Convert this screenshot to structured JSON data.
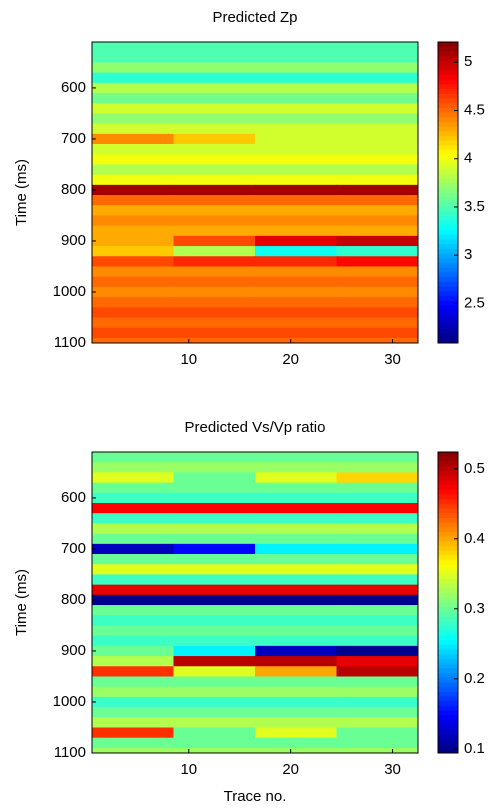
{
  "chart_data": [
    {
      "type": "heatmap",
      "title": "Predicted Zp",
      "y_label": "Time (ms)",
      "colormap": "jet",
      "x": [
        4.5,
        12.5,
        20.5,
        28.5
      ],
      "y": [
        520,
        540,
        560,
        580,
        600,
        620,
        640,
        660,
        680,
        700,
        720,
        740,
        760,
        780,
        800,
        820,
        840,
        860,
        880,
        900,
        920,
        940,
        960,
        980,
        1000,
        1020,
        1040,
        1060,
        1080,
        1100
      ],
      "values": [
        [
          3.5,
          3.5,
          3.5,
          3.5
        ],
        [
          3.5,
          3.5,
          3.5,
          3.5
        ],
        [
          3.7,
          3.7,
          3.7,
          3.7
        ],
        [
          3.4,
          3.4,
          3.4,
          3.4
        ],
        [
          3.8,
          3.8,
          3.8,
          3.8
        ],
        [
          3.6,
          3.6,
          3.6,
          3.6
        ],
        [
          3.9,
          3.9,
          3.9,
          3.9
        ],
        [
          3.7,
          3.7,
          3.7,
          3.7
        ],
        [
          3.9,
          3.9,
          3.9,
          3.9
        ],
        [
          4.4,
          4.2,
          3.9,
          3.9
        ],
        [
          3.9,
          3.9,
          3.9,
          3.9
        ],
        [
          4.0,
          4.0,
          4.0,
          4.0
        ],
        [
          3.8,
          3.8,
          3.8,
          3.8
        ],
        [
          4.0,
          4.0,
          4.0,
          4.0
        ],
        [
          5.1,
          5.1,
          5.1,
          5.1
        ],
        [
          4.5,
          4.5,
          4.5,
          4.5
        ],
        [
          4.3,
          4.3,
          4.3,
          4.3
        ],
        [
          4.4,
          4.4,
          4.4,
          4.4
        ],
        [
          4.3,
          4.3,
          4.3,
          4.3
        ],
        [
          4.3,
          4.6,
          4.9,
          5.0
        ],
        [
          4.2,
          3.8,
          3.3,
          3.4
        ],
        [
          4.6,
          4.7,
          4.7,
          4.8
        ],
        [
          4.4,
          4.4,
          4.4,
          4.4
        ],
        [
          4.5,
          4.5,
          4.5,
          4.5
        ],
        [
          4.4,
          4.4,
          4.4,
          4.4
        ],
        [
          4.5,
          4.5,
          4.5,
          4.5
        ],
        [
          4.6,
          4.6,
          4.6,
          4.6
        ],
        [
          4.5,
          4.5,
          4.5,
          4.5
        ],
        [
          4.6,
          4.6,
          4.6,
          4.6
        ],
        [
          4.5,
          4.5,
          4.5,
          4.5
        ]
      ],
      "xlim": [
        0.5,
        32.5
      ],
      "ylim": [
        510,
        1100
      ],
      "xticks": [
        10,
        20,
        30
      ],
      "yticks": [
        600,
        700,
        800,
        900,
        1000,
        1100
      ],
      "clim": [
        2.09,
        5.21
      ],
      "cticks": [
        2.5,
        3,
        3.5,
        4,
        4.5,
        5
      ]
    },
    {
      "type": "heatmap",
      "title": "Predicted Vs/Vp ratio",
      "x_label": "Trace no.",
      "y_label": "Time (ms)",
      "colormap": "jet",
      "x": [
        4.5,
        12.5,
        20.5,
        28.5
      ],
      "y": [
        520,
        540,
        560,
        580,
        600,
        620,
        640,
        660,
        680,
        700,
        720,
        740,
        760,
        780,
        800,
        820,
        840,
        860,
        880,
        900,
        920,
        940,
        960,
        980,
        1000,
        1020,
        1040,
        1060,
        1080,
        1100
      ],
      "values": [
        [
          0.3,
          0.3,
          0.3,
          0.3
        ],
        [
          0.32,
          0.32,
          0.32,
          0.32
        ],
        [
          0.35,
          0.3,
          0.35,
          0.38
        ],
        [
          0.3,
          0.3,
          0.3,
          0.3
        ],
        [
          0.28,
          0.28,
          0.28,
          0.28
        ],
        [
          0.47,
          0.47,
          0.47,
          0.47
        ],
        [
          0.28,
          0.28,
          0.28,
          0.28
        ],
        [
          0.33,
          0.33,
          0.33,
          0.33
        ],
        [
          0.3,
          0.3,
          0.3,
          0.3
        ],
        [
          0.12,
          0.15,
          0.25,
          0.25
        ],
        [
          0.3,
          0.3,
          0.3,
          0.3
        ],
        [
          0.35,
          0.35,
          0.35,
          0.35
        ],
        [
          0.28,
          0.28,
          0.28,
          0.28
        ],
        [
          0.48,
          0.48,
          0.48,
          0.48
        ],
        [
          0.1,
          0.1,
          0.1,
          0.1
        ],
        [
          0.3,
          0.3,
          0.3,
          0.3
        ],
        [
          0.28,
          0.28,
          0.28,
          0.28
        ],
        [
          0.3,
          0.3,
          0.3,
          0.3
        ],
        [
          0.28,
          0.28,
          0.28,
          0.28
        ],
        [
          0.3,
          0.25,
          0.12,
          0.1
        ],
        [
          0.33,
          0.5,
          0.5,
          0.48
        ],
        [
          0.45,
          0.35,
          0.4,
          0.5
        ],
        [
          0.3,
          0.3,
          0.3,
          0.3
        ],
        [
          0.32,
          0.32,
          0.32,
          0.32
        ],
        [
          0.28,
          0.28,
          0.28,
          0.28
        ],
        [
          0.3,
          0.3,
          0.3,
          0.3
        ],
        [
          0.33,
          0.33,
          0.33,
          0.33
        ],
        [
          0.45,
          0.3,
          0.35,
          0.3
        ],
        [
          0.3,
          0.3,
          0.3,
          0.3
        ],
        [
          0.32,
          0.32,
          0.32,
          0.32
        ]
      ],
      "xlim": [
        0.5,
        32.5
      ],
      "ylim": [
        510,
        1100
      ],
      "xticks": [
        10,
        20,
        30
      ],
      "yticks": [
        600,
        700,
        800,
        900,
        1000,
        1100
      ],
      "clim": [
        0.094,
        0.524
      ],
      "cticks": [
        0.1,
        0.2,
        0.3,
        0.4,
        0.5
      ]
    }
  ]
}
